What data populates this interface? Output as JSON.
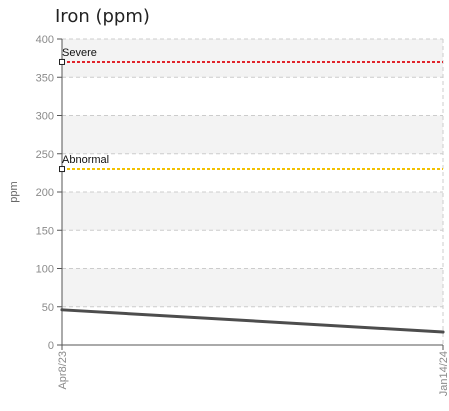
{
  "chart_data": {
    "type": "line",
    "title": "Iron (ppm)",
    "ylabel": "ppm",
    "xlabel": "",
    "ylim": [
      0,
      400
    ],
    "yticks": [
      0,
      50,
      100,
      150,
      200,
      250,
      300,
      350,
      400
    ],
    "x": [
      "Apr8/23",
      "Jan14/24"
    ],
    "series": [
      {
        "values": [
          46,
          17
        ],
        "color": "#4d4d4d"
      }
    ],
    "thresholds": [
      {
        "label": "Severe",
        "value": 370,
        "color": "#e0242b"
      },
      {
        "label": "Abnormal",
        "value": 230,
        "color": "#f2c200"
      }
    ],
    "grid": true
  }
}
